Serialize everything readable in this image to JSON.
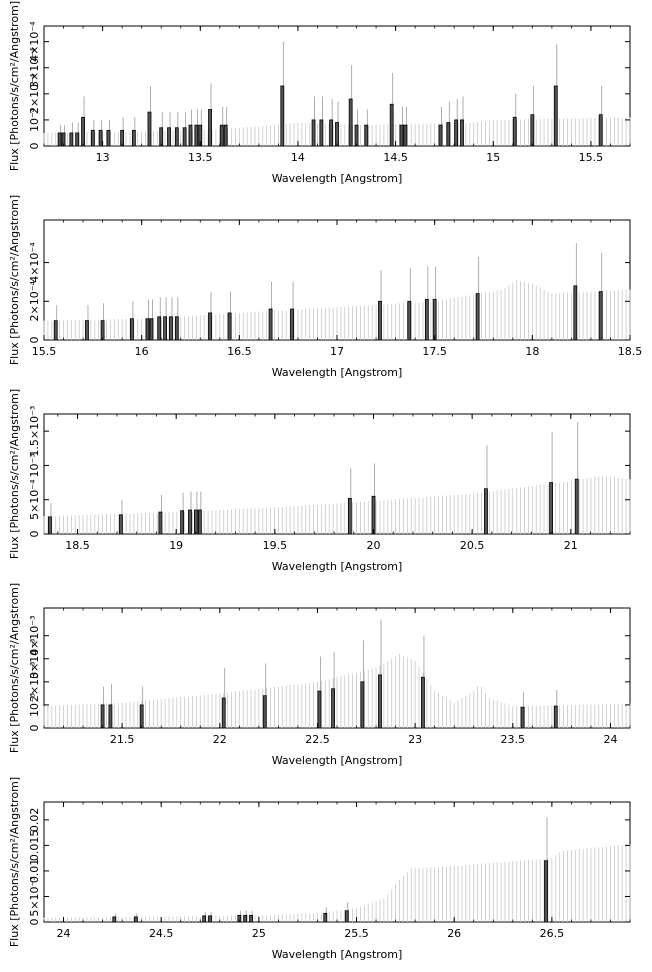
{
  "chart_data": [
    {
      "type": "bar",
      "xlabel": "Wavelength [Angstrom]",
      "ylabel": "Flux [Photons/s/cm²/Angstrom]",
      "xlim": [
        12.7,
        15.7
      ],
      "ylim": [
        0,
        0.00046
      ],
      "x_ticks": [
        {
          "v": 13,
          "label": "13"
        },
        {
          "v": 13.5,
          "label": "13.5"
        },
        {
          "v": 14,
          "label": "14"
        },
        {
          "v": 14.5,
          "label": "14.5"
        },
        {
          "v": 15,
          "label": "15"
        },
        {
          "v": 15.5,
          "label": "15.5"
        }
      ],
      "y_ticks": [
        {
          "v": 0,
          "label": "0"
        },
        {
          "v": 0.0001,
          "label": "10⁻⁴"
        },
        {
          "v": 0.0002,
          "label": "2×10⁻⁴"
        },
        {
          "v": 0.0003,
          "label": "3×10⁻⁴"
        },
        {
          "v": 0.0004,
          "label": "4×10⁻⁴"
        }
      ],
      "continuum": [
        [
          12.7,
          5e-05
        ],
        [
          13.5,
          6e-05
        ],
        [
          13.9,
          8e-05
        ],
        [
          14.0,
          9e-05
        ],
        [
          14.3,
          8e-05
        ],
        [
          14.9,
          9e-05
        ],
        [
          15.0,
          0.0001
        ],
        [
          15.7,
          0.00011
        ]
      ],
      "lines": [
        {
          "x": 12.78,
          "y": 5e-05,
          "err": 3e-05
        },
        {
          "x": 12.8,
          "y": 5e-05,
          "err": 3e-05
        },
        {
          "x": 12.84,
          "y": 5e-05,
          "err": 4e-05
        },
        {
          "x": 12.87,
          "y": 5e-05,
          "err": 4e-05
        },
        {
          "x": 12.9,
          "y": 0.00011,
          "err": 8e-05
        },
        {
          "x": 12.95,
          "y": 6e-05,
          "err": 4e-05
        },
        {
          "x": 12.99,
          "y": 6e-05,
          "err": 4e-05
        },
        {
          "x": 13.03,
          "y": 6e-05,
          "err": 4e-05
        },
        {
          "x": 13.1,
          "y": 6e-05,
          "err": 5e-05
        },
        {
          "x": 13.16,
          "y": 6e-05,
          "err": 5e-05
        },
        {
          "x": 13.24,
          "y": 0.00013,
          "err": 0.0001
        },
        {
          "x": 13.3,
          "y": 7e-05,
          "err": 6e-05
        },
        {
          "x": 13.34,
          "y": 7e-05,
          "err": 6e-05
        },
        {
          "x": 13.38,
          "y": 7e-05,
          "err": 6e-05
        },
        {
          "x": 13.42,
          "y": 7e-05,
          "err": 6e-05
        },
        {
          "x": 13.45,
          "y": 8e-05,
          "err": 6e-05
        },
        {
          "x": 13.48,
          "y": 8e-05,
          "err": 6e-05
        },
        {
          "x": 13.5,
          "y": 8e-05,
          "err": 6e-05
        },
        {
          "x": 13.55,
          "y": 0.00014,
          "err": 0.0001
        },
        {
          "x": 13.61,
          "y": 8e-05,
          "err": 7e-05
        },
        {
          "x": 13.63,
          "y": 8e-05,
          "err": 7e-05
        },
        {
          "x": 13.92,
          "y": 0.00023,
          "err": 0.00017
        },
        {
          "x": 14.08,
          "y": 0.0001,
          "err": 9e-05
        },
        {
          "x": 14.12,
          "y": 0.0001,
          "err": 9e-05
        },
        {
          "x": 14.17,
          "y": 0.0001,
          "err": 8e-05
        },
        {
          "x": 14.2,
          "y": 9e-05,
          "err": 8e-05
        },
        {
          "x": 14.27,
          "y": 0.00018,
          "err": 0.00013
        },
        {
          "x": 14.3,
          "y": 8e-05,
          "err": 6e-05
        },
        {
          "x": 14.35,
          "y": 8e-05,
          "err": 6e-05
        },
        {
          "x": 14.48,
          "y": 0.00016,
          "err": 0.00012
        },
        {
          "x": 14.53,
          "y": 8e-05,
          "err": 7e-05
        },
        {
          "x": 14.55,
          "y": 8e-05,
          "err": 7e-05
        },
        {
          "x": 14.73,
          "y": 8e-05,
          "err": 7e-05
        },
        {
          "x": 14.77,
          "y": 9e-05,
          "err": 8e-05
        },
        {
          "x": 14.81,
          "y": 0.0001,
          "err": 8e-05
        },
        {
          "x": 14.84,
          "y": 0.0001,
          "err": 9e-05
        },
        {
          "x": 15.11,
          "y": 0.00011,
          "err": 9e-05
        },
        {
          "x": 15.2,
          "y": 0.00012,
          "err": 0.00011
        },
        {
          "x": 15.32,
          "y": 0.00023,
          "err": 0.00016
        },
        {
          "x": 15.55,
          "y": 0.00012,
          "err": 0.00011
        }
      ]
    },
    {
      "type": "bar",
      "xlabel": "Wavelength [Angstrom]",
      "ylabel": "Flux [Photons/s/cm²/Angstrom]",
      "xlim": [
        15.5,
        18.5
      ],
      "ylim": [
        0,
        0.00062
      ],
      "x_ticks": [
        {
          "v": 15.5,
          "label": "15.5"
        },
        {
          "v": 16,
          "label": "16"
        },
        {
          "v": 16.5,
          "label": "16.5"
        },
        {
          "v": 17,
          "label": "17"
        },
        {
          "v": 17.5,
          "label": "17.5"
        },
        {
          "v": 18,
          "label": "18"
        },
        {
          "v": 18.5,
          "label": "18.5"
        }
      ],
      "y_ticks": [
        {
          "v": 0,
          "label": "0"
        },
        {
          "v": 0.0002,
          "label": "2×10⁻⁴"
        },
        {
          "v": 0.0004,
          "label": "4×10⁻⁴"
        }
      ],
      "continuum": [
        [
          15.5,
          0.0001
        ],
        [
          16.0,
          0.00011
        ],
        [
          16.5,
          0.00014
        ],
        [
          17.0,
          0.00017
        ],
        [
          17.5,
          0.0002
        ],
        [
          17.85,
          0.00026
        ],
        [
          17.92,
          0.00031
        ],
        [
          18.0,
          0.00029
        ],
        [
          18.1,
          0.00024
        ],
        [
          18.5,
          0.00026
        ]
      ],
      "lines": [
        {
          "x": 15.56,
          "y": 0.0001,
          "err": 8e-05
        },
        {
          "x": 15.72,
          "y": 0.0001,
          "err": 8e-05
        },
        {
          "x": 15.8,
          "y": 0.0001,
          "err": 9e-05
        },
        {
          "x": 15.95,
          "y": 0.00011,
          "err": 9e-05
        },
        {
          "x": 16.03,
          "y": 0.00011,
          "err": 0.0001
        },
        {
          "x": 16.05,
          "y": 0.00011,
          "err": 0.0001
        },
        {
          "x": 16.09,
          "y": 0.00012,
          "err": 0.0001
        },
        {
          "x": 16.12,
          "y": 0.00012,
          "err": 0.0001
        },
        {
          "x": 16.15,
          "y": 0.00012,
          "err": 0.0001
        },
        {
          "x": 16.18,
          "y": 0.00012,
          "err": 0.0001
        },
        {
          "x": 16.35,
          "y": 0.00014,
          "err": 0.00011
        },
        {
          "x": 16.45,
          "y": 0.00014,
          "err": 0.00011
        },
        {
          "x": 16.66,
          "y": 0.00016,
          "err": 0.00014
        },
        {
          "x": 16.77,
          "y": 0.00016,
          "err": 0.00014
        },
        {
          "x": 17.22,
          "y": 0.0002,
          "err": 0.00016
        },
        {
          "x": 17.37,
          "y": 0.0002,
          "err": 0.00017
        },
        {
          "x": 17.46,
          "y": 0.00021,
          "err": 0.00017
        },
        {
          "x": 17.5,
          "y": 0.00021,
          "err": 0.00017
        },
        {
          "x": 17.72,
          "y": 0.00024,
          "err": 0.00019
        },
        {
          "x": 18.22,
          "y": 0.00028,
          "err": 0.00022
        },
        {
          "x": 18.35,
          "y": 0.00025,
          "err": 0.0002
        }
      ]
    },
    {
      "type": "bar",
      "xlabel": "Wavelength [Angstrom]",
      "ylabel": "Flux [Photons/s/cm²/Angstrom]",
      "xlim": [
        18.33,
        21.3
      ],
      "ylim": [
        0,
        0.00175
      ],
      "x_ticks": [
        {
          "v": 18.5,
          "label": "18.5"
        },
        {
          "v": 19,
          "label": "19"
        },
        {
          "v": 19.5,
          "label": "19.5"
        },
        {
          "v": 20,
          "label": "20"
        },
        {
          "v": 20.5,
          "label": "20.5"
        },
        {
          "v": 21,
          "label": "21"
        }
      ],
      "y_ticks": [
        {
          "v": 0,
          "label": "0"
        },
        {
          "v": 0.0005,
          "label": "5×10⁻⁴"
        },
        {
          "v": 0.001,
          "label": "10⁻³"
        },
        {
          "v": 0.0015,
          "label": "1.5×10⁻³"
        }
      ],
      "continuum": [
        [
          18.33,
          0.00026
        ],
        [
          19.0,
          0.00032
        ],
        [
          19.5,
          0.00039
        ],
        [
          20.0,
          0.00048
        ],
        [
          20.5,
          0.00059
        ],
        [
          21.0,
          0.00077
        ],
        [
          21.15,
          0.00085
        ],
        [
          21.3,
          0.0008
        ]
      ],
      "lines": [
        {
          "x": 18.36,
          "y": 0.00025,
          "err": 0.0002
        },
        {
          "x": 18.72,
          "y": 0.00028,
          "err": 0.00022
        },
        {
          "x": 18.92,
          "y": 0.00032,
          "err": 0.00025
        },
        {
          "x": 19.03,
          "y": 0.00034,
          "err": 0.00026
        },
        {
          "x": 19.07,
          "y": 0.00035,
          "err": 0.00027
        },
        {
          "x": 19.1,
          "y": 0.00035,
          "err": 0.00027
        },
        {
          "x": 19.12,
          "y": 0.00035,
          "err": 0.00027
        },
        {
          "x": 19.88,
          "y": 0.00052,
          "err": 0.00044
        },
        {
          "x": 20.0,
          "y": 0.00055,
          "err": 0.00048
        },
        {
          "x": 20.57,
          "y": 0.00066,
          "err": 0.00063
        },
        {
          "x": 20.9,
          "y": 0.00075,
          "err": 0.00074
        },
        {
          "x": 21.03,
          "y": 0.0008,
          "err": 0.00083
        }
      ]
    },
    {
      "type": "bar",
      "xlabel": "Wavelength [Angstrom]",
      "ylabel": "Flux [Photons/s/cm²/Angstrom]",
      "xlim": [
        21.1,
        24.1
      ],
      "ylim": [
        0,
        0.0052
      ],
      "x_ticks": [
        {
          "v": 21.5,
          "label": "21.5"
        },
        {
          "v": 22,
          "label": "22"
        },
        {
          "v": 22.5,
          "label": "22.5"
        },
        {
          "v": 23,
          "label": "23"
        },
        {
          "v": 23.5,
          "label": "23.5"
        },
        {
          "v": 24,
          "label": "24"
        }
      ],
      "y_ticks": [
        {
          "v": 0,
          "label": "0"
        },
        {
          "v": 0.001,
          "label": "10⁻³"
        },
        {
          "v": 0.002,
          "label": "2×10⁻³"
        },
        {
          "v": 0.003,
          "label": "3×10⁻³"
        },
        {
          "v": 0.004,
          "label": "4×10⁻³"
        }
      ],
      "continuum": [
        [
          21.1,
          0.00095
        ],
        [
          21.5,
          0.0011
        ],
        [
          22.0,
          0.0015
        ],
        [
          22.5,
          0.002
        ],
        [
          22.8,
          0.0026
        ],
        [
          22.92,
          0.0032
        ],
        [
          23.0,
          0.0029
        ],
        [
          23.1,
          0.0016
        ],
        [
          23.2,
          0.0011
        ],
        [
          23.3,
          0.0016
        ],
        [
          23.33,
          0.0019
        ],
        [
          23.38,
          0.0013
        ],
        [
          23.5,
          0.00095
        ],
        [
          24.1,
          0.00105
        ]
      ],
      "lines": [
        {
          "x": 21.4,
          "y": 0.001,
          "err": 0.0008
        },
        {
          "x": 21.44,
          "y": 0.001,
          "err": 0.0009
        },
        {
          "x": 21.6,
          "y": 0.001,
          "err": 0.0008
        },
        {
          "x": 22.02,
          "y": 0.0013,
          "err": 0.0013
        },
        {
          "x": 22.23,
          "y": 0.0014,
          "err": 0.0014
        },
        {
          "x": 22.51,
          "y": 0.0016,
          "err": 0.0015
        },
        {
          "x": 22.58,
          "y": 0.0017,
          "err": 0.0016
        },
        {
          "x": 22.73,
          "y": 0.002,
          "err": 0.0018
        },
        {
          "x": 22.82,
          "y": 0.0023,
          "err": 0.0024
        },
        {
          "x": 23.04,
          "y": 0.0022,
          "err": 0.0018
        },
        {
          "x": 23.55,
          "y": 0.0009,
          "err": 0.00065
        },
        {
          "x": 23.72,
          "y": 0.00095,
          "err": 0.0007
        }
      ]
    },
    {
      "type": "bar",
      "xlabel": "Wavelength [Angstrom]",
      "ylabel": "Flux [Photons/s/cm²/Angstrom]",
      "xlim": [
        23.9,
        26.9
      ],
      "ylim": [
        0,
        0.0235
      ],
      "x_ticks": [
        {
          "v": 24,
          "label": "24"
        },
        {
          "v": 24.5,
          "label": "24.5"
        },
        {
          "v": 25,
          "label": "25"
        },
        {
          "v": 25.5,
          "label": "25.5"
        },
        {
          "v": 26,
          "label": "26"
        },
        {
          "v": 26.5,
          "label": "26.5"
        }
      ],
      "y_ticks": [
        {
          "v": 0,
          "label": "0"
        },
        {
          "v": 0.005,
          "label": "5×10⁻³"
        },
        {
          "v": 0.01,
          "label": "0.01"
        },
        {
          "v": 0.015,
          "label": "0.015"
        },
        {
          "v": 0.02,
          "label": "0.02"
        }
      ],
      "continuum": [
        [
          23.9,
          0.00085
        ],
        [
          24.5,
          0.001
        ],
        [
          25.0,
          0.0013
        ],
        [
          25.3,
          0.0017
        ],
        [
          25.5,
          0.0027
        ],
        [
          25.65,
          0.0048
        ],
        [
          25.7,
          0.0075
        ],
        [
          25.78,
          0.0105
        ],
        [
          26.0,
          0.011
        ],
        [
          26.5,
          0.0125
        ],
        [
          26.55,
          0.0139
        ],
        [
          26.9,
          0.0152
        ]
      ],
      "lines": [
        {
          "x": 24.26,
          "y": 0.001,
          "err": 0.0007
        },
        {
          "x": 24.37,
          "y": 0.001,
          "err": 0.0007
        },
        {
          "x": 24.72,
          "y": 0.0012,
          "err": 0.0008
        },
        {
          "x": 24.75,
          "y": 0.0012,
          "err": 0.0008
        },
        {
          "x": 24.9,
          "y": 0.0013,
          "err": 0.0009
        },
        {
          "x": 24.93,
          "y": 0.0013,
          "err": 0.0009
        },
        {
          "x": 24.96,
          "y": 0.0013,
          "err": 0.0009
        },
        {
          "x": 25.34,
          "y": 0.0017,
          "err": 0.0012
        },
        {
          "x": 25.45,
          "y": 0.0022,
          "err": 0.0017
        },
        {
          "x": 26.47,
          "y": 0.012,
          "err": 0.0085
        }
      ]
    }
  ]
}
